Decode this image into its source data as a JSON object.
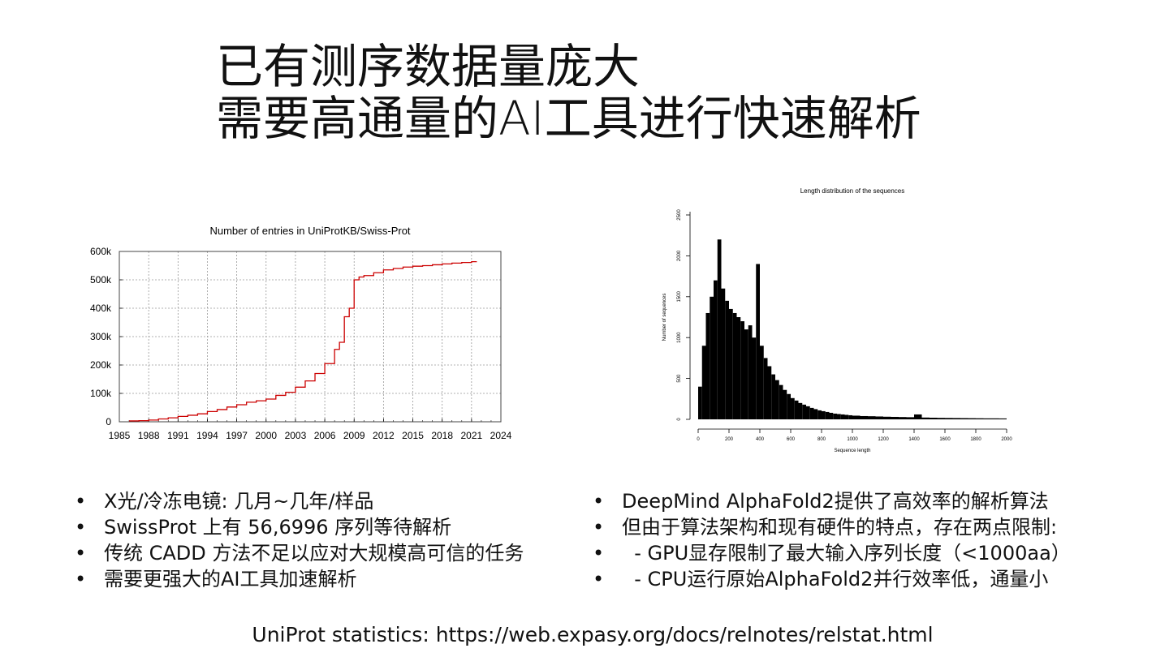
{
  "slide": {
    "title_lines": [
      "已有测序数据量庞大",
      "需要高通量的AI工具进行快速解析"
    ],
    "left_bullets": [
      "X光/冷冻电镜: 几月~几年/样品",
      "SwissProt 上有 56,6996 序列等待解析",
      "传统 CADD 方法不足以应对大规模高可信的任务",
      "需要更强大的AI工具加速解析"
    ],
    "right_bullets": [
      "DeepMind AlphaFold2提供了高效率的解析算法",
      "但由于算法架构和现有硬件的特点，存在两点限制:",
      "  - GPU显存限制了最大输入序列长度（<1000aa）",
      "  - CPU运行原始AlphaFold2并行效率低，通量小"
    ],
    "source": "UniProt statistics: https://web.expasy.org/docs/relnotes/relstat.html"
  },
  "chart_data": [
    {
      "type": "line",
      "title": "Number of entries in UniProtKB/Swiss-Prot",
      "xlabel": "",
      "ylabel": "",
      "grid": true,
      "line_color": "#cc0000",
      "xlim": [
        1985,
        2024
      ],
      "ylim": [
        0,
        600000
      ],
      "x_ticks": [
        "1985",
        "1988",
        "1991",
        "1994",
        "1997",
        "2000",
        "2003",
        "2006",
        "2009",
        "2012",
        "2015",
        "2018",
        "2021",
        "2024"
      ],
      "y_ticks": [
        "0",
        "100k",
        "200k",
        "300k",
        "400k",
        "500k",
        "600k"
      ],
      "x": [
        1986,
        1987,
        1988,
        1989,
        1990,
        1991,
        1992,
        1993,
        1994,
        1995,
        1996,
        1997,
        1998,
        1999,
        2000,
        2001,
        2002,
        2003,
        2004,
        2005,
        2006,
        2007,
        2007.5,
        2008,
        2008.5,
        2009,
        2009.5,
        2010,
        2011,
        2012,
        2013,
        2014,
        2015,
        2016,
        2017,
        2018,
        2019,
        2020,
        2021,
        2021.5
      ],
      "y": [
        3000,
        4000,
        6000,
        10000,
        14000,
        19000,
        23000,
        28000,
        36000,
        43000,
        52000,
        60000,
        69000,
        74000,
        80000,
        93000,
        104000,
        122000,
        144000,
        170000,
        205000,
        255000,
        280000,
        370000,
        400000,
        500000,
        510000,
        515000,
        525000,
        535000,
        540000,
        545000,
        548000,
        550000,
        553000,
        556000,
        559000,
        561000,
        564000,
        565000
      ]
    },
    {
      "type": "bar",
      "title": "Length distribution of the sequences",
      "xlabel": "Sequence length",
      "ylabel": "Number of sequences",
      "bar_color": "#000000",
      "xlim": [
        0,
        2000
      ],
      "ylim": [
        0,
        2500
      ],
      "x_ticks": [
        "0",
        "200",
        "400",
        "600",
        "800",
        "1000",
        "1200",
        "1400",
        "1600",
        "1800",
        "2000"
      ],
      "y_ticks": [
        "0",
        "500",
        "1000",
        "1500",
        "2000",
        "2500"
      ],
      "bin_starts": [
        0,
        25,
        50,
        75,
        100,
        125,
        150,
        175,
        200,
        225,
        250,
        275,
        300,
        325,
        350,
        375,
        400,
        425,
        450,
        475,
        500,
        525,
        550,
        575,
        600,
        625,
        650,
        675,
        700,
        725,
        750,
        775,
        800,
        825,
        850,
        875,
        900,
        925,
        950,
        975,
        1000,
        1050,
        1100,
        1150,
        1200,
        1250,
        1300,
        1350,
        1400,
        1450,
        1500,
        1550,
        1600,
        1650,
        1700,
        1750,
        1800,
        1850,
        1900,
        1950
      ],
      "counts": [
        400,
        900,
        1300,
        1500,
        1700,
        2200,
        1600,
        1450,
        1350,
        1300,
        1250,
        1200,
        1100,
        1150,
        1000,
        1900,
        900,
        750,
        650,
        550,
        480,
        420,
        360,
        310,
        260,
        230,
        200,
        180,
        160,
        140,
        125,
        110,
        100,
        90,
        80,
        70,
        65,
        60,
        55,
        50,
        45,
        40,
        38,
        35,
        32,
        30,
        28,
        26,
        60,
        22,
        20,
        18,
        17,
        16,
        15,
        14,
        13,
        12,
        12,
        11
      ]
    }
  ]
}
